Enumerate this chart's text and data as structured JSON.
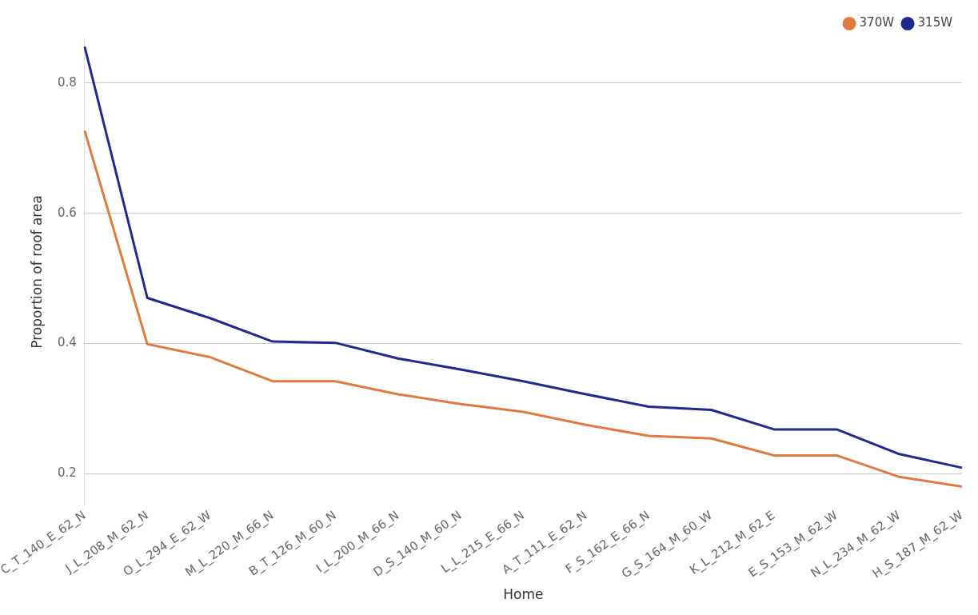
{
  "chart_data": {
    "type": "line",
    "xlabel": "Home",
    "ylabel": "Proportion of roof area",
    "categories": [
      "C_T_140_E_62_N",
      "J_L_208_M_62_N",
      "O_L_294_E_62_W",
      "M_L_220_M_66_N",
      "B_T_126_M_60_N",
      "I_L_200_M_66_N",
      "D_S_140_M_60_N",
      "L_L_215_E_66_N",
      "A_T_111_E_62_N",
      "F_S_162_E_66_N",
      "G_S_164_M_60_W",
      "K_L_212_M_62_E",
      "E_S_153_M_62_W",
      "N_L_234_M_62_W",
      "H_S_187_M_62_W"
    ],
    "series": [
      {
        "name": "370W",
        "color": "#e07a3f",
        "values": [
          0.727,
          0.399,
          0.379,
          0.342,
          0.342,
          0.322,
          0.307,
          0.295,
          0.275,
          0.258,
          0.254,
          0.228,
          0.228,
          0.195,
          0.18
        ]
      },
      {
        "name": "315W",
        "color": "#1f2a8f",
        "values": [
          0.856,
          0.47,
          0.439,
          0.403,
          0.401,
          0.377,
          0.36,
          0.342,
          0.322,
          0.303,
          0.298,
          0.268,
          0.268,
          0.23,
          0.209
        ]
      }
    ],
    "ylim": [
      0.15,
      0.87
    ],
    "yticks": [
      0.2,
      0.4,
      0.6,
      0.8
    ],
    "grid": "y",
    "legend": "top right",
    "marker": "none",
    "line_style": "solid"
  }
}
